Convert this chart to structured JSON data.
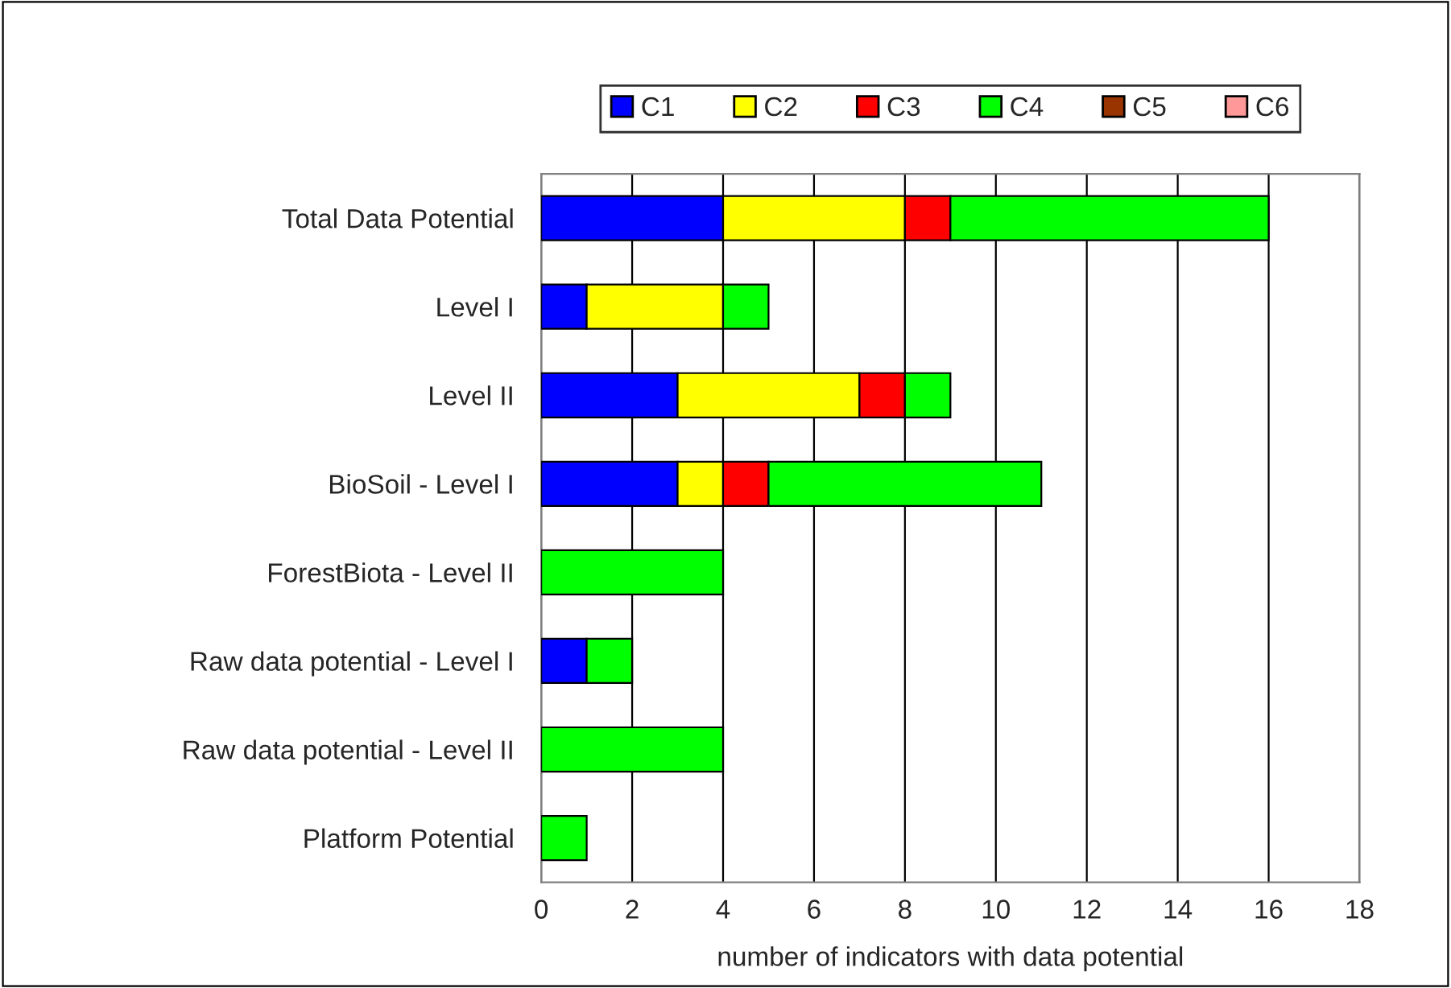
{
  "chart_data": {
    "type": "bar",
    "orientation": "horizontal",
    "stacked": true,
    "categories": [
      "Total Data Potential",
      "Level I",
      "Level II",
      "BioSoil - Level I",
      "ForestBiota - Level II",
      "Raw data potential - Level I",
      "Raw data potential - Level II",
      "Platform Potential"
    ],
    "series": [
      {
        "name": "C1",
        "color": "#0000ff",
        "values": [
          4,
          1,
          3,
          3,
          0,
          1,
          0,
          0
        ]
      },
      {
        "name": "C2",
        "color": "#ffff00",
        "values": [
          4,
          3,
          4,
          1,
          0,
          0,
          0,
          0
        ]
      },
      {
        "name": "C3",
        "color": "#ff0000",
        "values": [
          1,
          0,
          1,
          1,
          0,
          0,
          0,
          0
        ]
      },
      {
        "name": "C4",
        "color": "#00ff00",
        "values": [
          7,
          1,
          1,
          6,
          4,
          1,
          4,
          1
        ]
      },
      {
        "name": "C5",
        "color": "#993300",
        "values": [
          0,
          0,
          0,
          0,
          0,
          0,
          0,
          0
        ]
      },
      {
        "name": "C6",
        "color": "#ff9999",
        "values": [
          0,
          0,
          0,
          0,
          0,
          0,
          0,
          0
        ]
      }
    ],
    "xlabel": "number of indicators with data potential",
    "xlim": [
      0,
      18
    ],
    "xticks": [
      0,
      2,
      4,
      6,
      8,
      10,
      12,
      14,
      16,
      18
    ],
    "grid": "x",
    "legend": "top"
  }
}
